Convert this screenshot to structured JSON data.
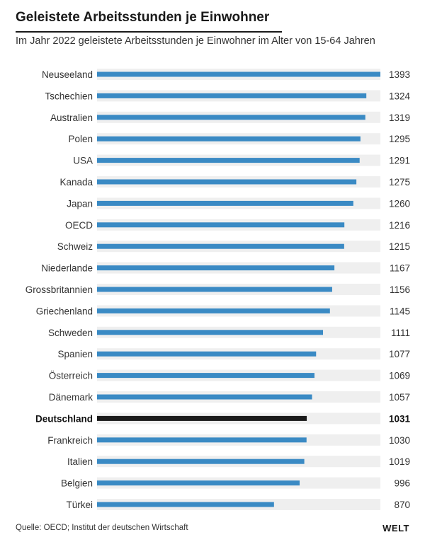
{
  "header": {
    "title": "Geleistete Arbeitsstunden je Einwohner",
    "subtitle": "Im Jahr 2022 geleistete Arbeitsstunden je Einwohner im Alter von 15-64 Jahren"
  },
  "footer": {
    "source": "Quelle: OECD; Institut der deutschen Wirtschaft",
    "logo": "WELT"
  },
  "colors": {
    "bar": "#3a8ac4",
    "highlight": "#1a1a1a",
    "track": "#efefef"
  },
  "chart_data": {
    "type": "bar",
    "orientation": "horizontal",
    "highlight": "Deutschland",
    "categories": [
      "Neuseeland",
      "Tschechien",
      "Australien",
      "Polen",
      "USA",
      "Kanada",
      "Japan",
      "OECD",
      "Schweiz",
      "Niederlande",
      "Grossbritannien",
      "Griechenland",
      "Schweden",
      "Spanien",
      "Österreich",
      "Dänemark",
      "Deutschland",
      "Frankreich",
      "Italien",
      "Belgien",
      "Türkei"
    ],
    "values": [
      1393,
      1324,
      1319,
      1295,
      1291,
      1275,
      1260,
      1216,
      1215,
      1167,
      1156,
      1145,
      1111,
      1077,
      1069,
      1057,
      1031,
      1030,
      1019,
      996,
      870
    ],
    "xlim": [
      0,
      1393
    ]
  }
}
